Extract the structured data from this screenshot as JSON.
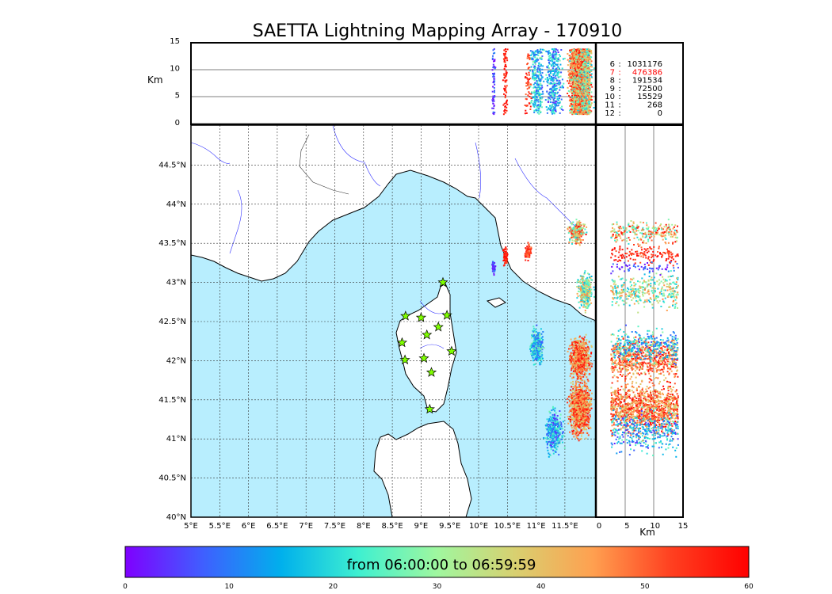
{
  "chart_data": {
    "type": "scatter",
    "title": "SAETTA Lightning Mapping Array - 170910",
    "map": {
      "lon_range": [
        5,
        12
      ],
      "lat_range": [
        40,
        45
      ],
      "x_ticks": [
        "5°E",
        "5.5°E",
        "6°E",
        "6.5°E",
        "7°E",
        "7.5°E",
        "8°E",
        "8.5°E",
        "9°E",
        "9.5°E",
        "10°E",
        "10.5°E",
        "11°E",
        "11.5°E"
      ],
      "y_ticks": [
        "40°N",
        "40.5°N",
        "41°N",
        "41.5°N",
        "42°N",
        "42.5°N",
        "43°N",
        "43.5°N",
        "44°N",
        "44.5°N"
      ]
    },
    "altitude_panel": {
      "ylabel": "Km",
      "y_ticks": [
        "0",
        "5",
        "10",
        "15"
      ],
      "ylim": [
        0,
        15
      ]
    },
    "side_panel": {
      "xlabel": "Km",
      "x_ticks": [
        "0",
        "5",
        "10",
        "15"
      ],
      "xlim": [
        0,
        15
      ]
    },
    "station_counts": [
      {
        "stations": "6",
        "count": "1031176",
        "highlight": false
      },
      {
        "stations": "7",
        "count": "476386",
        "highlight": true
      },
      {
        "stations": "8",
        "count": "191534",
        "highlight": false
      },
      {
        "stations": "9",
        "count": "72500",
        "highlight": false
      },
      {
        "stations": "10",
        "count": "15529",
        "highlight": false
      },
      {
        "stations": "11",
        "count": "268",
        "highlight": false
      },
      {
        "stations": "12",
        "count": "0",
        "highlight": false
      }
    ],
    "highlight_color": "#ff0000",
    "stations_lonlat": [
      [
        9.38,
        43.0
      ],
      [
        8.73,
        42.57
      ],
      [
        9.0,
        42.55
      ],
      [
        9.45,
        42.58
      ],
      [
        9.3,
        42.43
      ],
      [
        9.1,
        42.33
      ],
      [
        8.67,
        42.23
      ],
      [
        9.53,
        42.12
      ],
      [
        8.72,
        42.01
      ],
      [
        9.05,
        42.03
      ],
      [
        9.18,
        41.85
      ],
      [
        9.15,
        41.38
      ]
    ],
    "colorbar": {
      "label": "from 06:00:00 to 06:59:59",
      "ticks": [
        "0",
        "10",
        "20",
        "30",
        "40",
        "50",
        "60"
      ],
      "range": [
        0,
        60
      ],
      "colors": [
        "#7f00ff",
        "#3f5fff",
        "#00b0ec",
        "#3ff0d0",
        "#9ff79f",
        "#d8d070",
        "#ffa050",
        "#ff4020",
        "#ff0000"
      ]
    }
  }
}
